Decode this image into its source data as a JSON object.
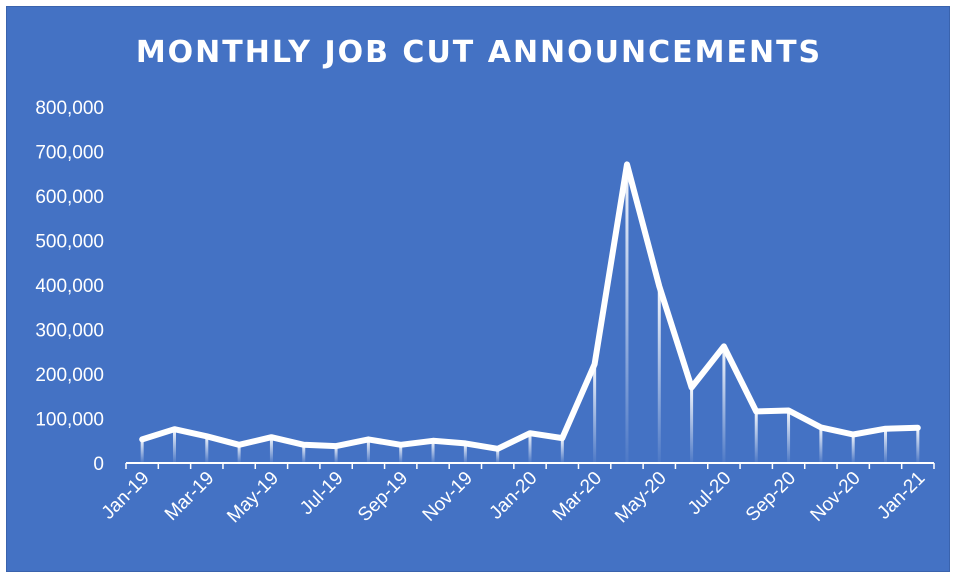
{
  "chart_data": {
    "type": "line",
    "title": "MONTHLY JOB CUT ANNOUNCEMENTS",
    "xlabel": "",
    "ylabel": "",
    "ylim": [
      0,
      800000
    ],
    "yticks": [
      0,
      100000,
      200000,
      300000,
      400000,
      500000,
      600000,
      700000,
      800000
    ],
    "ytick_labels": [
      "0",
      "100,000",
      "200,000",
      "300,000",
      "400,000",
      "500,000",
      "600,000",
      "700,000",
      "800,000"
    ],
    "x": [
      "Jan-19",
      "Feb-19",
      "Mar-19",
      "Apr-19",
      "May-19",
      "Jun-19",
      "Jul-19",
      "Aug-19",
      "Sep-19",
      "Oct-19",
      "Nov-19",
      "Dec-19",
      "Jan-20",
      "Feb-20",
      "Mar-20",
      "Apr-20",
      "May-20",
      "Jun-20",
      "Jul-20",
      "Aug-20",
      "Sep-20",
      "Oct-20",
      "Nov-20",
      "Dec-20",
      "Jan-21"
    ],
    "xtick_labels": [
      "Jan-19",
      "Mar-19",
      "May-19",
      "Jul-19",
      "Sep-19",
      "Nov-19",
      "Jan-20",
      "Mar-20",
      "May-20",
      "Jul-20",
      "Sep-20",
      "Nov-20",
      "Jan-21"
    ],
    "series": [
      {
        "values": [
          53000,
          76000,
          60000,
          41000,
          58000,
          41000,
          38000,
          53000,
          41000,
          50000,
          44000,
          32000,
          67000,
          56000,
          222000,
          671000,
          397000,
          170000,
          262000,
          116000,
          118000,
          80000,
          64000,
          77000,
          79000
        ]
      }
    ],
    "grid": false,
    "legend": "none",
    "colors": {
      "background": "#4472C4",
      "line": "#ffffff",
      "text": "#ffffff"
    }
  }
}
